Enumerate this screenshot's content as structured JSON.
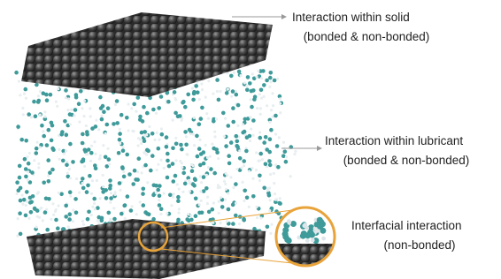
{
  "labels": [
    {
      "title": "Interaction within solid",
      "subtitle": "(bonded & non-bonded)"
    },
    {
      "title": "Interaction within lubricant",
      "subtitle": "(bonded & non-bonded)"
    },
    {
      "title": "Interfacial interaction",
      "subtitle": "(non-bonded)"
    }
  ]
}
